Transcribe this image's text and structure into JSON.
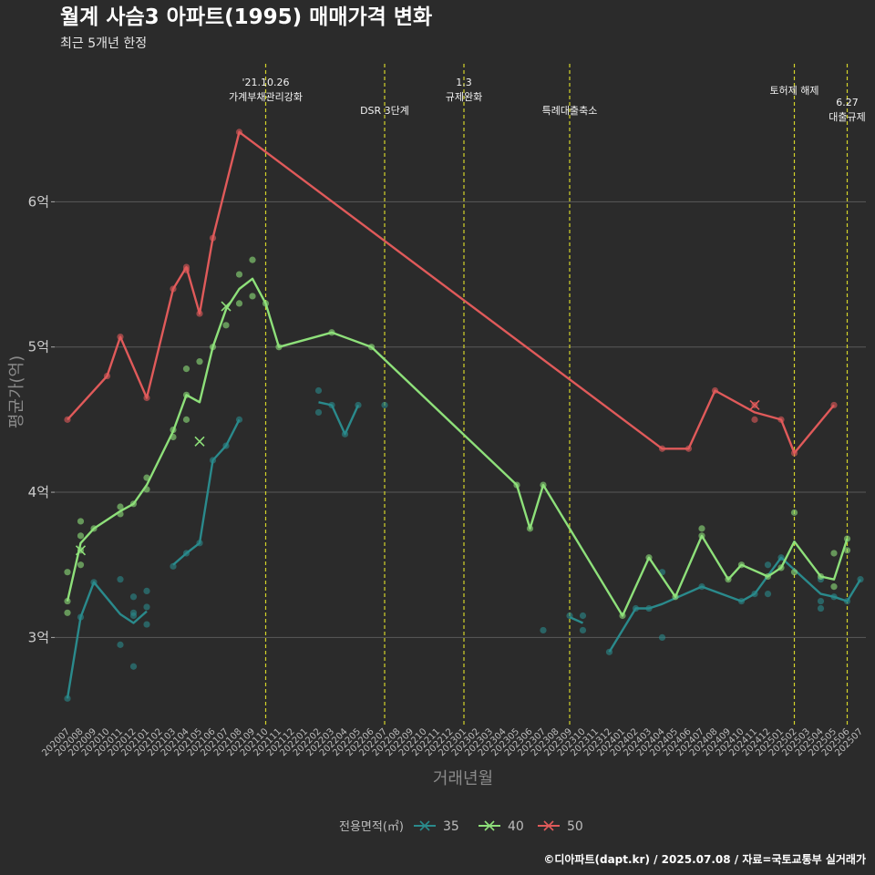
{
  "chart_data": {
    "type": "line",
    "title": "월계 사슴3 아파트(1995) 매매가격 변화",
    "subtitle": "최근 5개년 한정",
    "xlabel": "거래년월",
    "ylabel": "평균가(억)",
    "caption": "©디아파트(dapt.kr) / 2025.07.08 / 자료=국토교통부 실거래가",
    "ylim": [
      2.4,
      6.95
    ],
    "yticks": [
      {
        "value": 3,
        "label": "3억"
      },
      {
        "value": 4,
        "label": "4억"
      },
      {
        "value": 5,
        "label": "5억"
      },
      {
        "value": 6,
        "label": "6억"
      }
    ],
    "x_categories": [
      "202007",
      "202008",
      "202009",
      "202010",
      "202011",
      "202012",
      "202101",
      "202102",
      "202103",
      "202104",
      "202105",
      "202106",
      "202107",
      "202108",
      "202109",
      "202110",
      "202111",
      "202112",
      "202201",
      "202202",
      "202203",
      "202204",
      "202205",
      "202206",
      "202207",
      "202208",
      "202209",
      "202210",
      "202211",
      "202212",
      "202301",
      "202302",
      "202303",
      "202304",
      "202305",
      "202306",
      "202307",
      "202308",
      "202309",
      "202310",
      "202311",
      "202312",
      "202401",
      "202402",
      "202403",
      "202404",
      "202405",
      "202406",
      "202407",
      "202408",
      "202409",
      "202410",
      "202411",
      "202412",
      "202501",
      "202502",
      "202503",
      "202504",
      "202505",
      "202506",
      "202507"
    ],
    "legend_title": "전용면적(㎡)",
    "legend_position": "bottom",
    "grid": true,
    "events": [
      {
        "x": "202110",
        "label": "'21.10.26\n가계부채관리강화",
        "label_level": 0
      },
      {
        "x": "202207",
        "label": "DSR 3단계",
        "label_level": 1
      },
      {
        "x": "202301",
        "label": "1.3\n규제완화",
        "label_level": 0
      },
      {
        "x": "202309",
        "label": "특례대출축소",
        "label_level": 1
      },
      {
        "x": "202502",
        "label": "토허제 해제",
        "label_level": 0
      },
      {
        "x": "202506",
        "label": "6.27\n대출규제",
        "label_level": 2
      }
    ],
    "series": [
      {
        "name": "35",
        "color": "#2a8a8c",
        "line": [
          [
            [
              "202007",
              2.58
            ],
            [
              "202008",
              3.14
            ],
            [
              "202009",
              3.38
            ],
            [
              "202011",
              3.16
            ],
            [
              "202012",
              3.1
            ],
            [
              "202101",
              3.18
            ]
          ],
          [
            [
              "202103",
              3.5
            ],
            [
              "202104",
              3.58
            ],
            [
              "202105",
              3.65
            ],
            [
              "202106",
              4.22
            ],
            [
              "202107",
              4.32
            ],
            [
              "202108",
              4.5
            ]
          ],
          [
            [
              "202202",
              4.62
            ],
            [
              "202203",
              4.6
            ],
            [
              "202204",
              4.4
            ],
            [
              "202205",
              4.6
            ]
          ],
          [
            [
              "202309",
              3.14
            ],
            [
              "202310",
              3.1
            ]
          ],
          [
            [
              "202312",
              2.9
            ],
            [
              "202402",
              3.2
            ],
            [
              "202403",
              3.2
            ],
            [
              "202404",
              3.23
            ],
            [
              "202407",
              3.35
            ],
            [
              "202410",
              3.25
            ],
            [
              "202411",
              3.3
            ],
            [
              "202501",
              3.55
            ],
            [
              "202504",
              3.3
            ],
            [
              "202505",
              3.28
            ],
            [
              "202506",
              3.25
            ],
            [
              "202507",
              3.4
            ]
          ]
        ],
        "points": [
          [
            "202007",
            2.58
          ],
          [
            "202008",
            3.14
          ],
          [
            "202009",
            3.38
          ],
          [
            "202011",
            3.4
          ],
          [
            "202011",
            2.95
          ],
          [
            "202012",
            3.28
          ],
          [
            "202012",
            3.17
          ],
          [
            "202012",
            3.15
          ],
          [
            "202012",
            2.8
          ],
          [
            "202101",
            3.32
          ],
          [
            "202101",
            3.21
          ],
          [
            "202101",
            3.09
          ],
          [
            "202103",
            3.49
          ],
          [
            "202104",
            3.58
          ],
          [
            "202105",
            3.65
          ],
          [
            "202106",
            4.22
          ],
          [
            "202107",
            4.32
          ],
          [
            "202108",
            4.5
          ],
          [
            "202202",
            4.7
          ],
          [
            "202202",
            4.55
          ],
          [
            "202203",
            4.6
          ],
          [
            "202204",
            4.4
          ],
          [
            "202205",
            4.6
          ],
          [
            "202207",
            4.6
          ],
          [
            "202307",
            3.05
          ],
          [
            "202309",
            3.15
          ],
          [
            "202310",
            3.15
          ],
          [
            "202310",
            3.05
          ],
          [
            "202312",
            2.9
          ],
          [
            "202402",
            3.2
          ],
          [
            "202403",
            3.2
          ],
          [
            "202404",
            3.45
          ],
          [
            "202404",
            3.0
          ],
          [
            "202407",
            3.35
          ],
          [
            "202410",
            3.25
          ],
          [
            "202411",
            3.3
          ],
          [
            "202412",
            3.5
          ],
          [
            "202412",
            3.3
          ],
          [
            "202501",
            3.55
          ],
          [
            "202504",
            3.4
          ],
          [
            "202504",
            3.25
          ],
          [
            "202504",
            3.2
          ],
          [
            "202505",
            3.28
          ],
          [
            "202506",
            3.25
          ],
          [
            "202507",
            3.4
          ]
        ],
        "cross_marks": []
      },
      {
        "name": "40",
        "color": "#8ee07a",
        "line": [
          [
            [
              "202007",
              3.25
            ],
            [
              "202008",
              3.65
            ],
            [
              "202009",
              3.75
            ],
            [
              "202011",
              3.87
            ],
            [
              "202012",
              3.92
            ],
            [
              "202101",
              4.05
            ],
            [
              "202103",
              4.42
            ],
            [
              "202104",
              4.67
            ],
            [
              "202105",
              4.62
            ],
            [
              "202106",
              5.0
            ],
            [
              "202107",
              5.26
            ],
            [
              "202108",
              5.4
            ],
            [
              "202109",
              5.47
            ],
            [
              "202110",
              5.3
            ],
            [
              "202111",
              5.0
            ],
            [
              "202203",
              5.1
            ],
            [
              "202206",
              5.0
            ],
            [
              "202305",
              4.05
            ],
            [
              "202306",
              3.75
            ],
            [
              "202307",
              4.05
            ],
            [
              "202401",
              3.15
            ],
            [
              "202403",
              3.55
            ],
            [
              "202405",
              3.28
            ],
            [
              "202407",
              3.7
            ],
            [
              "202409",
              3.4
            ],
            [
              "202410",
              3.5
            ],
            [
              "202412",
              3.42
            ],
            [
              "202501",
              3.48
            ],
            [
              "202502",
              3.66
            ],
            [
              "202504",
              3.42
            ],
            [
              "202505",
              3.4
            ],
            [
              "202506",
              3.68
            ]
          ]
        ],
        "points": [
          [
            "202007",
            3.45
          ],
          [
            "202007",
            3.25
          ],
          [
            "202007",
            3.17
          ],
          [
            "202008",
            3.8
          ],
          [
            "202008",
            3.7
          ],
          [
            "202008",
            3.6
          ],
          [
            "202008",
            3.5
          ],
          [
            "202009",
            3.75
          ],
          [
            "202011",
            3.9
          ],
          [
            "202011",
            3.85
          ],
          [
            "202012",
            3.92
          ],
          [
            "202101",
            4.1
          ],
          [
            "202101",
            4.02
          ],
          [
            "202103",
            4.43
          ],
          [
            "202103",
            4.38
          ],
          [
            "202104",
            4.85
          ],
          [
            "202104",
            4.67
          ],
          [
            "202104",
            4.5
          ],
          [
            "202105",
            4.9
          ],
          [
            "202106",
            5.0
          ],
          [
            "202107",
            5.15
          ],
          [
            "202108",
            5.5
          ],
          [
            "202108",
            5.3
          ],
          [
            "202109",
            5.6
          ],
          [
            "202109",
            5.35
          ],
          [
            "202110",
            5.3
          ],
          [
            "202111",
            5.0
          ],
          [
            "202203",
            5.1
          ],
          [
            "202206",
            5.0
          ],
          [
            "202305",
            4.05
          ],
          [
            "202306",
            3.75
          ],
          [
            "202307",
            4.05
          ],
          [
            "202401",
            3.15
          ],
          [
            "202403",
            3.55
          ],
          [
            "202405",
            3.28
          ],
          [
            "202407",
            3.75
          ],
          [
            "202407",
            3.7
          ],
          [
            "202409",
            3.4
          ],
          [
            "202410",
            3.5
          ],
          [
            "202412",
            3.42
          ],
          [
            "202501",
            3.48
          ],
          [
            "202502",
            3.86
          ],
          [
            "202502",
            3.45
          ],
          [
            "202504",
            3.42
          ],
          [
            "202505",
            3.58
          ],
          [
            "202505",
            3.35
          ],
          [
            "202506",
            3.68
          ],
          [
            "202506",
            3.6
          ]
        ],
        "cross_marks": [
          [
            "202008",
            3.6
          ],
          [
            "202105",
            4.35
          ],
          [
            "202107",
            5.28
          ]
        ]
      },
      {
        "name": "50",
        "color": "#e05a5a",
        "line": [
          [
            [
              "202007",
              4.5
            ],
            [
              "202010",
              4.8
            ],
            [
              "202011",
              5.07
            ],
            [
              "202101",
              4.65
            ],
            [
              "202103",
              5.4
            ],
            [
              "202104",
              5.55
            ],
            [
              "202105",
              5.23
            ],
            [
              "202106",
              5.75
            ],
            [
              "202108",
              6.48
            ],
            [
              "202404",
              4.3
            ],
            [
              "202406",
              4.3
            ],
            [
              "202408",
              4.7
            ],
            [
              "202411",
              4.55
            ],
            [
              "202501",
              4.5
            ],
            [
              "202502",
              4.27
            ],
            [
              "202505",
              4.6
            ]
          ]
        ],
        "points": [
          [
            "202007",
            4.5
          ],
          [
            "202010",
            4.8
          ],
          [
            "202011",
            5.07
          ],
          [
            "202101",
            4.65
          ],
          [
            "202103",
            5.4
          ],
          [
            "202104",
            5.55
          ],
          [
            "202104",
            5.53
          ],
          [
            "202105",
            5.23
          ],
          [
            "202106",
            5.75
          ],
          [
            "202108",
            6.48
          ],
          [
            "202404",
            4.3
          ],
          [
            "202406",
            4.3
          ],
          [
            "202408",
            4.7
          ],
          [
            "202411",
            4.6
          ],
          [
            "202411",
            4.5
          ],
          [
            "202501",
            4.5
          ],
          [
            "202502",
            4.27
          ],
          [
            "202505",
            4.6
          ]
        ],
        "cross_marks": [
          [
            "202411",
            4.6
          ]
        ]
      }
    ]
  }
}
